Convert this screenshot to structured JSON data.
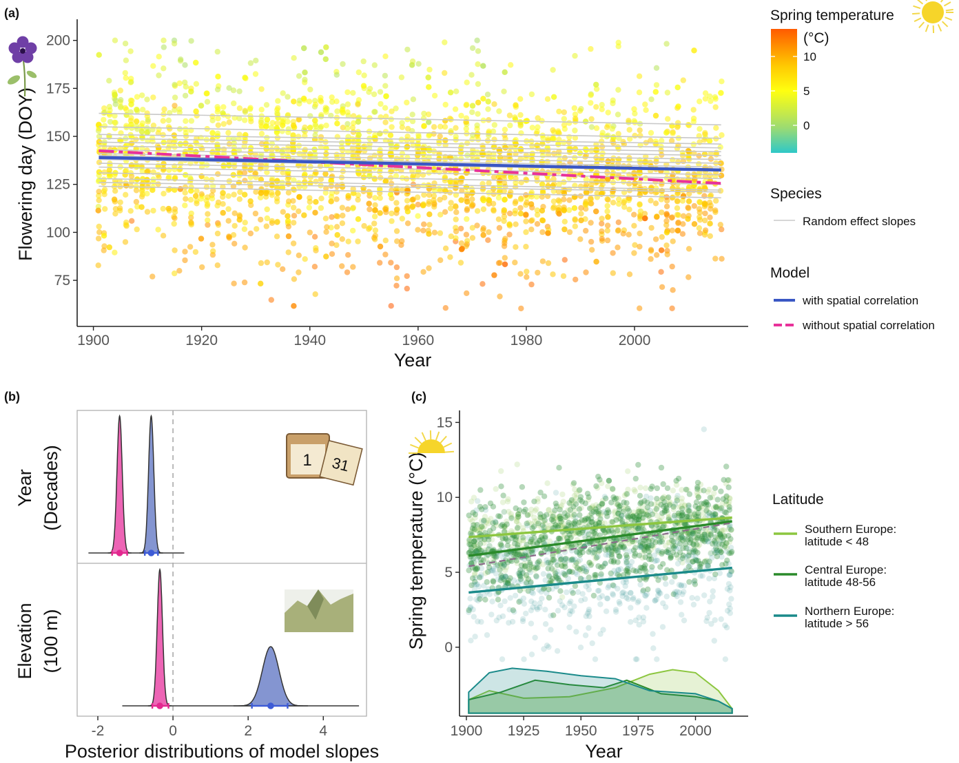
{
  "chart_data": [
    {
      "type": "scatter",
      "panel_label": "(a)",
      "xlabel": "Year",
      "ylabel": "Flowering day (DOY)",
      "xlim": [
        1897,
        2021
      ],
      "ylim": [
        51,
        211
      ],
      "xticks": [
        1900,
        1920,
        1940,
        1960,
        1980,
        2000
      ],
      "yticks": [
        75,
        100,
        125,
        150,
        175,
        200
      ],
      "color_legend": {
        "title": "Spring temperature",
        "unit": "(°C)",
        "ticks": [
          0,
          5,
          10
        ],
        "range": [
          -4,
          14
        ]
      },
      "species_legend": {
        "title": "Species",
        "entry": "Random effect slopes"
      },
      "model_legend": {
        "title": "Model",
        "entries": [
          "with spatial correlation",
          "without spatial correlation"
        ]
      },
      "lines": {
        "with_spatial_correlation": {
          "x": [
            1901,
            2016
          ],
          "y": [
            139,
            132.5
          ],
          "color": "#3a57c4"
        },
        "without_spatial_correlation": {
          "x": [
            1901,
            2016
          ],
          "y": [
            142.5,
            125.5
          ],
          "color": "#e8329a"
        },
        "random_effect_slopes": [
          [
            162,
            156
          ],
          [
            155,
            149
          ],
          [
            151,
            146
          ],
          [
            149,
            144
          ],
          [
            147,
            142
          ],
          [
            145,
            140
          ],
          [
            143,
            138
          ],
          [
            141,
            136
          ],
          [
            140,
            134
          ],
          [
            138,
            132
          ],
          [
            136,
            130
          ],
          [
            134,
            128
          ],
          [
            131,
            125
          ],
          [
            128,
            122
          ],
          [
            126,
            121
          ],
          [
            124,
            118
          ]
        ],
        "random_effect_color": "#c8c8c8"
      },
      "points_summary": "≈2500 observations, DOY 60–200, colored by spring temperature"
    },
    {
      "type": "density",
      "panel_label": "(b)",
      "xlabel": "Posterior distributions of model slopes",
      "xlim": [
        -2.55,
        5.15
      ],
      "xticks": [
        -2,
        0,
        2,
        4
      ],
      "rows": [
        {
          "label": "Year",
          "sublabel": "(Decades)",
          "series": [
            {
              "model": "without spatial correlation",
              "mean": -1.42,
              "sd": 0.07,
              "ci": [
                -1.62,
                -1.22
              ],
              "color": "#ea4aa8"
            },
            {
              "model": "with spatial correlation",
              "mean": -0.58,
              "sd": 0.07,
              "ci": [
                -0.75,
                -0.4
              ],
              "color": "#6f83c9"
            }
          ],
          "line_range": [
            -2.25,
            0.3
          ]
        },
        {
          "label": "Elevation",
          "sublabel": "(100 m)",
          "series": [
            {
              "model": "without spatial correlation",
              "mean": -0.35,
              "sd": 0.07,
              "ci": [
                -0.55,
                -0.12
              ],
              "color": "#ea4aa8"
            },
            {
              "model": "with spatial correlation",
              "mean": 2.6,
              "sd": 0.22,
              "ci": [
                2.1,
                3.05
              ],
              "color": "#6f83c9"
            }
          ],
          "line_range": [
            -1.35,
            4.95
          ]
        }
      ]
    },
    {
      "type": "scatter",
      "panel_label": "(c)",
      "xlabel": "Year",
      "ylabel": "Spring temperature (°C)",
      "xlim": [
        1897,
        2023
      ],
      "ylim": [
        -4.6,
        15.8
      ],
      "xticks": [
        1900,
        1925,
        1950,
        1975,
        2000
      ],
      "yticks": [
        0,
        5,
        10,
        15
      ],
      "legend": {
        "title": "Latitude"
      },
      "series": [
        {
          "name": "Southern Europe:\nlatitude < 48",
          "color": "#8cc63f",
          "trend": {
            "x": [
              1901,
              2016
            ],
            "y": [
              7.35,
              8.65
            ]
          },
          "density": [
            [
              1901,
              -3.5
            ],
            [
              1910,
              -2.9
            ],
            [
              1925,
              -3.4
            ],
            [
              1945,
              -3.3
            ],
            [
              1965,
              -2.7
            ],
            [
              1980,
              -1.8
            ],
            [
              1990,
              -1.5
            ],
            [
              2000,
              -1.7
            ],
            [
              2010,
              -2.9
            ],
            [
              2016,
              -4.1
            ]
          ]
        },
        {
          "name": "Central Europe:\nlatitude 48-56",
          "color": "#2a8a2a",
          "trend": {
            "x": [
              1901,
              2016
            ],
            "y": [
              6.1,
              8.4
            ]
          },
          "density": [
            [
              1901,
              -3.5
            ],
            [
              1915,
              -3.0
            ],
            [
              1930,
              -2.2
            ],
            [
              1945,
              -2.5
            ],
            [
              1960,
              -2.7
            ],
            [
              1970,
              -2.2
            ],
            [
              1985,
              -3.1
            ],
            [
              2000,
              -3.3
            ],
            [
              2010,
              -3.6
            ],
            [
              2016,
              -4.1
            ]
          ]
        },
        {
          "name": "Northern Europe:\nlatitude > 56",
          "color": "#1a8a8a",
          "trend": {
            "x": [
              1901,
              2016
            ],
            "y": [
              3.65,
              5.3
            ]
          },
          "density": [
            [
              1901,
              -3.0
            ],
            [
              1910,
              -1.7
            ],
            [
              1920,
              -1.4
            ],
            [
              1935,
              -1.6
            ],
            [
              1950,
              -1.9
            ],
            [
              1965,
              -2.1
            ],
            [
              1980,
              -2.9
            ],
            [
              2000,
              -3.1
            ],
            [
              2010,
              -3.6
            ],
            [
              2016,
              -4.1
            ]
          ]
        }
      ],
      "overall_trend": {
        "x": [
          1901,
          2016
        ],
        "y": [
          5.4,
          8.3
        ],
        "color": "#8c6a8a",
        "dashed": true
      }
    }
  ],
  "icons": [
    "violet-flower-icon",
    "sun-icon",
    "calendar-icon",
    "mountain-icon"
  ]
}
